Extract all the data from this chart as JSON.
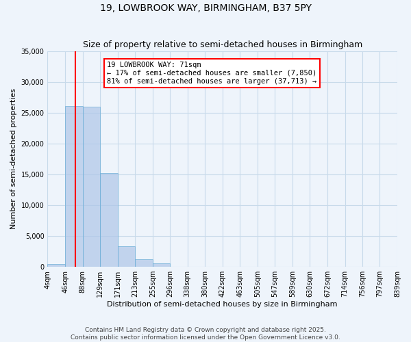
{
  "title1": "19, LOWBROOK WAY, BIRMINGHAM, B37 5PY",
  "title2": "Size of property relative to semi-detached houses in Birmingham",
  "xlabel": "Distribution of semi-detached houses by size in Birmingham",
  "ylabel": "Number of semi-detached properties",
  "property_size": 71,
  "property_label": "19 LOWBROOK WAY: 71sqm",
  "pct_smaller": 17,
  "pct_larger": 81,
  "count_smaller": 7850,
  "count_larger": 37713,
  "bin_edges": [
    4,
    46,
    88,
    129,
    171,
    213,
    255,
    296,
    338,
    380,
    422,
    463,
    505,
    547,
    589,
    630,
    672,
    714,
    756,
    797,
    839
  ],
  "bar_heights": [
    500,
    26100,
    26000,
    15200,
    3300,
    1200,
    600,
    0,
    0,
    0,
    0,
    0,
    0,
    0,
    0,
    0,
    0,
    0,
    0,
    0
  ],
  "bar_color": "#aec6e8",
  "bar_edge_color": "#6baed6",
  "bar_alpha": 0.7,
  "grid_color": "#c8daea",
  "bg_color": "#eef4fb",
  "red_line_color": "red",
  "annotation_box_color": "white",
  "annotation_box_edge": "red",
  "ylim": [
    0,
    35000
  ],
  "yticks": [
    0,
    5000,
    10000,
    15000,
    20000,
    25000,
    30000,
    35000
  ],
  "footnote": "Contains HM Land Registry data © Crown copyright and database right 2025.\nContains public sector information licensed under the Open Government Licence v3.0.",
  "title_fontsize": 10,
  "subtitle_fontsize": 9,
  "axis_label_fontsize": 8,
  "tick_fontsize": 7,
  "annotation_fontsize": 7.5,
  "footnote_fontsize": 6.5
}
